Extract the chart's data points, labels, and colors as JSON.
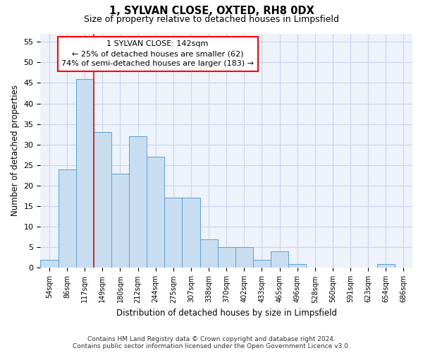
{
  "title": "1, SYLVAN CLOSE, OXTED, RH8 0DX",
  "subtitle": "Size of property relative to detached houses in Limpsfield",
  "xlabel": "Distribution of detached houses by size in Limpsfield",
  "ylabel": "Number of detached properties",
  "categories": [
    "54sqm",
    "86sqm",
    "117sqm",
    "149sqm",
    "180sqm",
    "212sqm",
    "244sqm",
    "275sqm",
    "307sqm",
    "338sqm",
    "370sqm",
    "402sqm",
    "433sqm",
    "465sqm",
    "496sqm",
    "528sqm",
    "560sqm",
    "591sqm",
    "623sqm",
    "654sqm",
    "686sqm"
  ],
  "values": [
    2,
    24,
    46,
    33,
    23,
    32,
    27,
    17,
    17,
    7,
    5,
    5,
    2,
    4,
    1,
    0,
    0,
    0,
    0,
    1,
    0
  ],
  "bar_color": "#c9ddf0",
  "bar_edge_color": "#5a9fd4",
  "ylim": [
    0,
    57
  ],
  "yticks": [
    0,
    5,
    10,
    15,
    20,
    25,
    30,
    35,
    40,
    45,
    50,
    55
  ],
  "property_label": "1 SYLVAN CLOSE: 142sqm",
  "pct_smaller": "25% of detached houses are smaller (62)",
  "pct_larger": "74% of semi-detached houses are larger (183)",
  "footer_line1": "Contains HM Land Registry data © Crown copyright and database right 2024.",
  "footer_line2": "Contains public sector information licensed under the Open Government Licence v3.0.",
  "grid_color": "#c8d4e8",
  "background_color": "#eef2f9"
}
